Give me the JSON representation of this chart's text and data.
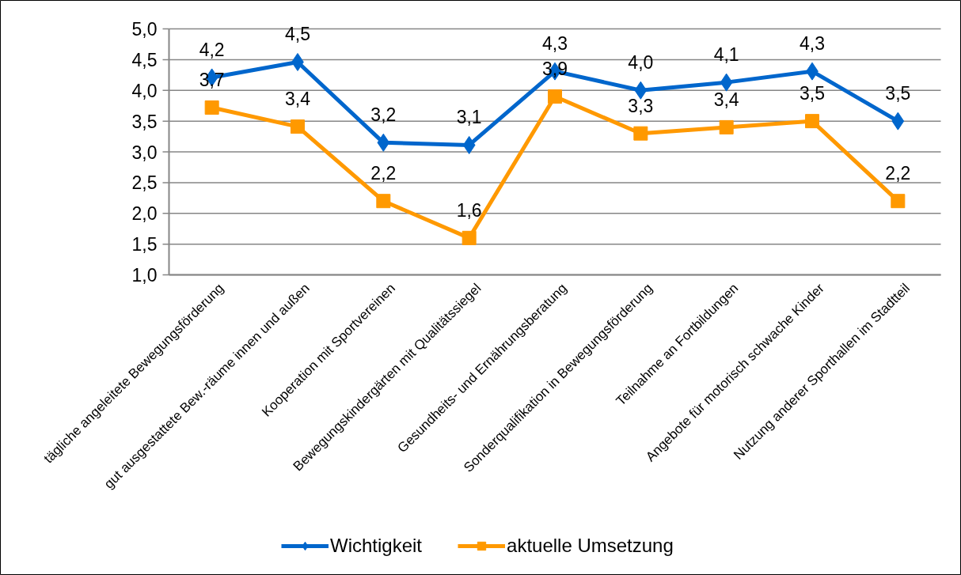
{
  "chart_data": {
    "type": "line",
    "categories": [
      "tägliche angeleitete Bewegungsförderung",
      "gut ausgestattete Bew.-räume innen und außen",
      "Kooperation mit Sportvereinen",
      "Bewegungskindergärten mit Qualitätssiegel",
      "Gesundheits- und Ernährungsberatung",
      "Sonderqualifikation in Bewegungsförderung",
      "Teilnahme an Fortbildungen",
      "Angebote für motorisch schwache Kinder",
      "Nutzung anderer Sporthallen im Stadtteil"
    ],
    "ylim": [
      1,
      5
    ],
    "yticks": [
      {
        "value": 1,
        "label": "1,0"
      },
      {
        "value": 1.5,
        "label": "1,5"
      },
      {
        "value": 2,
        "label": "2,0"
      },
      {
        "value": 2.5,
        "label": "2,5"
      },
      {
        "value": 3,
        "label": "3,0"
      },
      {
        "value": 3.5,
        "label": "3,5"
      },
      {
        "value": 4,
        "label": "4,0"
      },
      {
        "value": 4.5,
        "label": "4,5"
      },
      {
        "value": 5,
        "label": "5,0"
      }
    ],
    "grid": "y",
    "legend": "bottom",
    "line_style": "solid",
    "series": [
      {
        "name": "Wichtigkeit",
        "color": "#0066cc",
        "marker": "diamond",
        "values": [
          4.21,
          4.46,
          3.15,
          3.11,
          4.31,
          4.0,
          4.13,
          4.31,
          3.5
        ],
        "value_labels": [
          "4,2",
          "4,5",
          "3,2",
          "3,1",
          "4,3",
          "4,0",
          "4,1",
          "4,3",
          "3,5"
        ]
      },
      {
        "name": "aktuelle Umsetzung",
        "color": "#ff9900",
        "marker": "square",
        "values": [
          3.72,
          3.41,
          2.2,
          1.6,
          3.9,
          3.3,
          3.4,
          3.5,
          2.2
        ],
        "value_labels": [
          "3,7",
          "3,4",
          "2,2",
          "1,6",
          "3,9",
          "3,3",
          "3,4",
          "3,5",
          "2,2"
        ]
      }
    ]
  }
}
